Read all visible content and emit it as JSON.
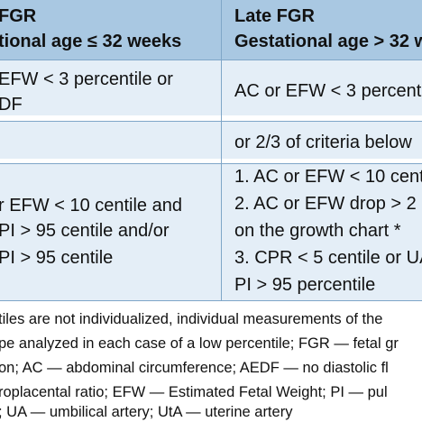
{
  "table": {
    "header": {
      "left_line1": "FGR",
      "left_line2": "tional age ≤ 32 weeks",
      "right_line1": "Late FGR",
      "right_line2": "Gestational age > 32 w"
    },
    "row1": {
      "left_line1": "EFW < 3 percentile or",
      "left_line2": "DF",
      "right": "AC or EFW < 3 percenti"
    },
    "row2": {
      "right": "or 2/3 of criteria below"
    },
    "row3": {
      "left_line1": "r EFW < 10 centile and",
      "left_line2": "PI > 95 centile and/or",
      "left_line3": "PI > 95 centile",
      "right_line1": "1. AC or EFW < 10 centi",
      "right_line2": "2. AC or EFW drop > 2 c",
      "right_line3": "on the growth chart *",
      "right_line4": "3. CPR < 5 centile or UA",
      "right_line5": "PI > 95 percentile"
    }
  },
  "footnote": {
    "line1": "tiles are not individualized, individual measurements of the",
    "line2": "pe analyzed in each case of a low percentile; FGR — fetal gr",
    "line3": "on; AC — abdominal circumference; AEDF — no diastolic fl",
    "line4": "roplacental ratio; EFW — Estimated Fetal Weight; PI — pul",
    "line5": "; UA — umbilical artery; UtA — uterine artery"
  }
}
